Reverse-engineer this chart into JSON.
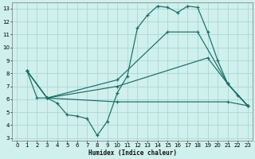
{
  "xlabel": "Humidex (Indice chaleur)",
  "background_color": "#cff0ec",
  "grid_color": "#aad8d3",
  "line_color": "#1a6b66",
  "xlim": [
    -0.5,
    23.5
  ],
  "ylim": [
    2.8,
    13.5
  ],
  "xticks": [
    0,
    1,
    2,
    3,
    4,
    5,
    6,
    7,
    8,
    9,
    10,
    11,
    12,
    13,
    14,
    15,
    16,
    17,
    18,
    19,
    20,
    21,
    22,
    23
  ],
  "yticks": [
    3,
    4,
    5,
    6,
    7,
    8,
    9,
    10,
    11,
    12,
    13
  ],
  "series": [
    {
      "x": [
        1,
        2,
        3,
        4,
        5,
        6,
        7,
        8,
        9,
        10,
        11,
        12,
        13,
        14,
        15,
        16,
        17,
        18,
        19,
        20,
        21,
        22,
        23
      ],
      "y": [
        8.2,
        6.1,
        6.1,
        5.7,
        4.8,
        4.7,
        4.5,
        3.2,
        4.3,
        6.5,
        7.8,
        11.5,
        12.5,
        13.2,
        13.1,
        12.7,
        13.2,
        13.1,
        11.2,
        9.0,
        7.2,
        6.3,
        5.5
      ]
    },
    {
      "x": [
        1,
        3,
        10,
        15,
        18,
        21,
        23
      ],
      "y": [
        8.2,
        6.1,
        7.5,
        11.2,
        11.2,
        7.2,
        5.5
      ]
    },
    {
      "x": [
        1,
        3,
        10,
        19,
        21,
        23
      ],
      "y": [
        8.2,
        6.1,
        7.0,
        9.2,
        7.2,
        5.5
      ]
    },
    {
      "x": [
        1,
        3,
        10,
        21,
        23
      ],
      "y": [
        8.2,
        6.1,
        5.8,
        5.8,
        5.5
      ]
    }
  ]
}
